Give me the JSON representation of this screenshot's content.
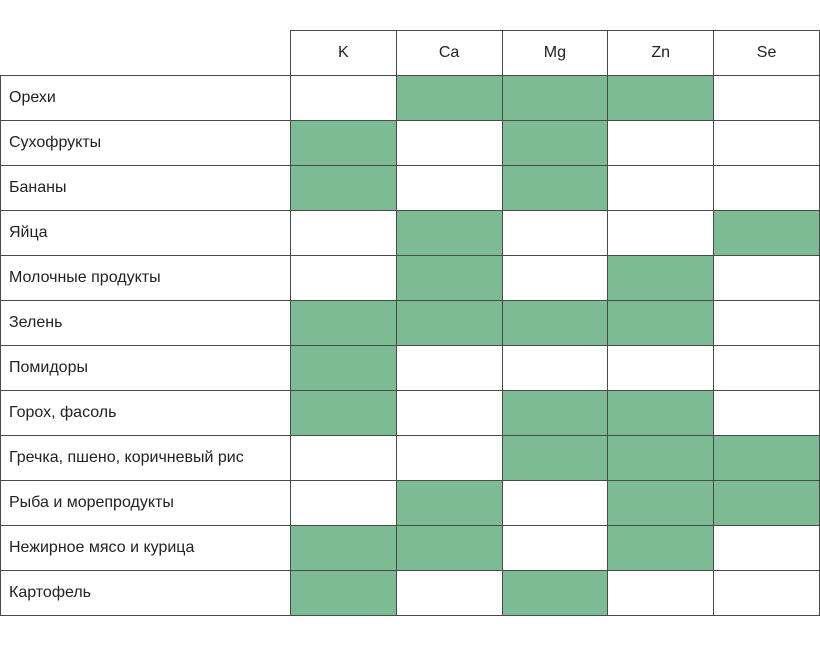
{
  "accent_color": "#7dbb95",
  "elements": [
    "K",
    "Ca",
    "Mg",
    "Zn",
    "Se"
  ],
  "rows": [
    {
      "label": "Орехи",
      "marks": [
        false,
        true,
        true,
        true,
        false
      ]
    },
    {
      "label": "Сухофрукты",
      "marks": [
        true,
        false,
        true,
        false,
        false
      ]
    },
    {
      "label": "Бананы",
      "marks": [
        true,
        false,
        true,
        false,
        false
      ]
    },
    {
      "label": "Яйца",
      "marks": [
        false,
        true,
        false,
        false,
        true
      ]
    },
    {
      "label": "Молочные продукты",
      "marks": [
        false,
        true,
        false,
        true,
        false
      ]
    },
    {
      "label": "Зелень",
      "marks": [
        true,
        true,
        true,
        true,
        false
      ]
    },
    {
      "label": "Помидоры",
      "marks": [
        true,
        false,
        false,
        false,
        false
      ]
    },
    {
      "label": "Горох, фасоль",
      "marks": [
        true,
        false,
        true,
        true,
        false
      ]
    },
    {
      "label": "Гречка, пшено, коричневый рис",
      "marks": [
        false,
        false,
        true,
        true,
        true
      ]
    },
    {
      "label": "Рыба и морепродукты",
      "marks": [
        false,
        true,
        false,
        true,
        true
      ]
    },
    {
      "label": "Нежирное мясо и курица",
      "marks": [
        true,
        true,
        false,
        true,
        false
      ]
    },
    {
      "label": "Картофель",
      "marks": [
        true,
        false,
        true,
        false,
        false
      ]
    }
  ]
}
